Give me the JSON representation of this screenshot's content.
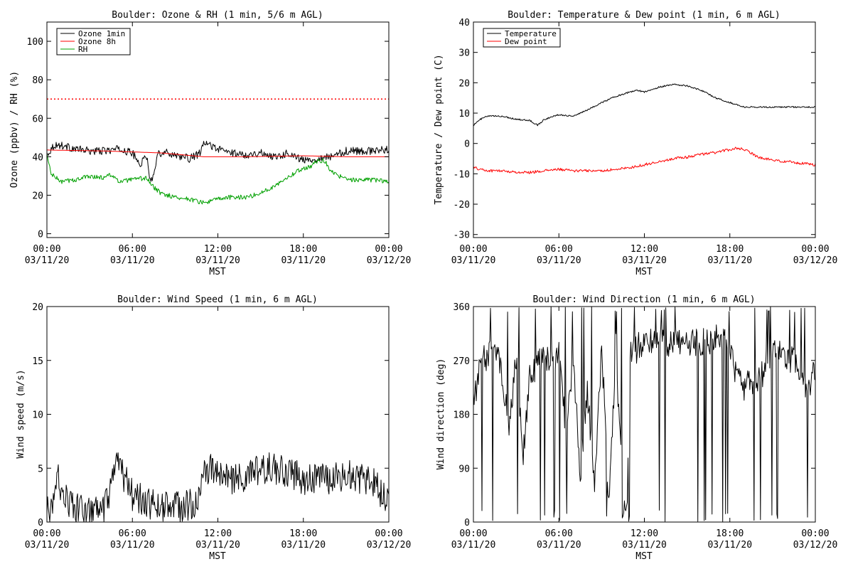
{
  "chart_data": [
    {
      "type": "line",
      "title": "Boulder: Ozone & RH (1 min, 5/6 m AGL)",
      "ylabel": "Ozone (ppbv) / RH (%)",
      "xlabel": "MST",
      "xlim": [
        0,
        24
      ],
      "ylim": [
        -2,
        110
      ],
      "yticks": [
        0,
        20,
        40,
        60,
        80,
        100
      ],
      "ytick_labels": [
        "0",
        "20",
        "40",
        "60",
        "80",
        "100"
      ],
      "xticks": [
        0,
        6,
        12,
        18,
        24
      ],
      "xtick_labels": [
        [
          "00:00",
          "03/11/20"
        ],
        [
          "06:00",
          "03/11/20"
        ],
        [
          "12:00",
          "03/11/20"
        ],
        [
          "18:00",
          "03/11/20"
        ],
        [
          "00:00",
          "03/12/20"
        ]
      ],
      "legend": "top-left",
      "hline": {
        "y": 70,
        "color": "#ff0000",
        "style": "dotted"
      },
      "series": [
        {
          "name": "Ozone 1min",
          "color": "#000000",
          "noise": 2.0,
          "x": [
            0,
            0.5,
            1,
            2,
            3,
            4,
            5,
            6,
            6.5,
            7,
            7.3,
            7.8,
            8.5,
            9,
            10,
            10.8,
            11,
            11.5,
            12,
            13,
            14,
            15,
            16,
            17,
            18,
            19,
            19.5,
            20,
            21,
            22,
            23,
            24
          ],
          "y": [
            41,
            46,
            46,
            44,
            43,
            43,
            44,
            42,
            36,
            40,
            26,
            42,
            42,
            41,
            39,
            42,
            47,
            46,
            44,
            42,
            41,
            42,
            40,
            42,
            38,
            39,
            40,
            40,
            43,
            43,
            43,
            44
          ]
        },
        {
          "name": "Ozone 8h",
          "color": "#ff0000",
          "noise": 0,
          "x": [
            0,
            4,
            8,
            11,
            14,
            18,
            21,
            24
          ],
          "y": [
            43.5,
            43,
            42,
            40,
            40,
            40.5,
            40,
            40
          ]
        },
        {
          "name": "RH",
          "color": "#00a000",
          "noise": 1.2,
          "x": [
            0,
            0.3,
            1,
            2,
            3,
            4,
            4.5,
            5,
            6,
            7,
            7.5,
            8,
            9,
            10,
            11,
            12,
            13,
            14,
            15,
            16,
            17,
            18,
            18.5,
            19,
            19.5,
            20,
            21,
            22,
            23,
            24
          ],
          "y": [
            41,
            31,
            27,
            28,
            30,
            29,
            31,
            27,
            28,
            29,
            24,
            21,
            19,
            18,
            16,
            18,
            19,
            19,
            21,
            25,
            30,
            34,
            35,
            38,
            38,
            32,
            28,
            28,
            28,
            27
          ]
        }
      ]
    },
    {
      "type": "line",
      "title": "Boulder: Temperature & Dew point (1 min, 6 m AGL)",
      "ylabel": "Temperature / Dew point (C)",
      "xlabel": "MST",
      "xlim": [
        0,
        24
      ],
      "ylim": [
        -31,
        40
      ],
      "yticks": [
        -30,
        -20,
        -10,
        0,
        10,
        20,
        30,
        40
      ],
      "ytick_labels": [
        "-30",
        "-20",
        "-10",
        "0",
        "10",
        "20",
        "30",
        "40"
      ],
      "xticks": [
        0,
        6,
        12,
        18,
        24
      ],
      "xtick_labels": [
        [
          "00:00",
          "03/11/20"
        ],
        [
          "06:00",
          "03/11/20"
        ],
        [
          "12:00",
          "03/11/20"
        ],
        [
          "18:00",
          "03/11/20"
        ],
        [
          "00:00",
          "03/12/20"
        ]
      ],
      "legend": "top-left",
      "series": [
        {
          "name": "Temperature",
          "color": "#000000",
          "noise": 0.25,
          "x": [
            0,
            0.5,
            1,
            2,
            3,
            4,
            4.5,
            5,
            6,
            7,
            8,
            9,
            10,
            11,
            11.5,
            12,
            13,
            14,
            15,
            16,
            17,
            18,
            19,
            20,
            21,
            22,
            23,
            24
          ],
          "y": [
            6,
            8,
            9,
            9,
            8,
            7.5,
            6,
            8,
            9.5,
            9,
            11,
            13.5,
            15.5,
            17,
            17.5,
            17,
            18.5,
            19.5,
            19,
            17.5,
            15,
            13.5,
            12,
            12,
            12,
            12,
            12,
            12
          ]
        },
        {
          "name": "Dew point",
          "color": "#ff0000",
          "noise": 0.45,
          "x": [
            0,
            1,
            2,
            3,
            4,
            5,
            6,
            7,
            8,
            9,
            10,
            11,
            12,
            13,
            14,
            15,
            16,
            17,
            18,
            18.5,
            19,
            20,
            21,
            22,
            23,
            24
          ],
          "y": [
            -8,
            -9,
            -9,
            -9.5,
            -9.5,
            -9,
            -8.5,
            -9,
            -9,
            -9,
            -8.5,
            -8,
            -7,
            -6,
            -5,
            -4.5,
            -3.5,
            -3,
            -2,
            -1.5,
            -2,
            -4.5,
            -5.5,
            -6,
            -6.5,
            -7
          ]
        }
      ]
    },
    {
      "type": "line",
      "title": "Boulder: Wind Speed (1 min, 6 m AGL)",
      "ylabel": "Wind speed (m/s)",
      "xlabel": "MST",
      "xlim": [
        0,
        24
      ],
      "ylim": [
        0,
        20
      ],
      "yticks": [
        0,
        5,
        10,
        15,
        20
      ],
      "ytick_labels": [
        "0",
        "5",
        "10",
        "15",
        "20"
      ],
      "xticks": [
        0,
        6,
        12,
        18,
        24
      ],
      "xtick_labels": [
        [
          "00:00",
          "03/11/20"
        ],
        [
          "06:00",
          "03/11/20"
        ],
        [
          "12:00",
          "03/11/20"
        ],
        [
          "18:00",
          "03/11/20"
        ],
        [
          "00:00",
          "03/12/20"
        ]
      ],
      "series": [
        {
          "color": "#000000",
          "noise": 1.5,
          "x": [
            0,
            0.5,
            0.8,
            1,
            1.5,
            2,
            3,
            4,
            4.5,
            5,
            5.5,
            6,
            7,
            8,
            9,
            10,
            10.8,
            11,
            11.5,
            12,
            13,
            14,
            15,
            16,
            17,
            18,
            19,
            20,
            21,
            22,
            23,
            24
          ],
          "y": [
            1,
            1.5,
            4.5,
            3,
            2,
            1.2,
            1,
            1,
            3,
            5.5,
            4,
            2.5,
            1.8,
            1.5,
            1.5,
            1.5,
            2.5,
            4.5,
            5,
            4.5,
            4,
            4,
            5,
            5,
            4.5,
            4,
            4,
            4,
            4.5,
            4,
            3.5,
            2
          ]
        }
      ]
    },
    {
      "type": "line",
      "title": "Boulder: Wind Direction (1 min, 6 m AGL)",
      "ylabel": "Wind direction (deg)",
      "xlabel": "MST",
      "xlim": [
        0,
        24
      ],
      "ylim": [
        0,
        360
      ],
      "yticks": [
        0,
        90,
        180,
        270,
        360
      ],
      "ytick_labels": [
        "0",
        "90",
        "180",
        "270",
        "360"
      ],
      "xticks": [
        0,
        6,
        12,
        18,
        24
      ],
      "xtick_labels": [
        [
          "00:00",
          "03/11/20"
        ],
        [
          "06:00",
          "03/11/20"
        ],
        [
          "12:00",
          "03/11/20"
        ],
        [
          "18:00",
          "03/11/20"
        ],
        [
          "00:00",
          "03/12/20"
        ]
      ],
      "series": [
        {
          "color": "#000000",
          "noise": 25,
          "spike_prob": 0.12,
          "x": [
            0,
            0.3,
            0.5,
            1,
            1.5,
            2,
            2.5,
            3,
            3.5,
            4,
            4.5,
            5,
            5.5,
            6,
            6.5,
            7,
            7.5,
            8,
            8.5,
            9,
            9.5,
            10,
            10.5,
            10.8,
            11,
            11.5,
            12,
            13,
            14,
            15,
            16,
            17,
            18,
            18.5,
            19,
            19.5,
            20,
            20.5,
            21,
            22,
            23,
            23.5,
            24
          ],
          "y": [
            200,
            240,
            260,
            280,
            300,
            250,
            150,
            280,
            120,
            250,
            260,
            280,
            270,
            290,
            150,
            270,
            80,
            220,
            60,
            300,
            30,
            290,
            40,
            30,
            280,
            290,
            300,
            305,
            300,
            300,
            300,
            305,
            300,
            240,
            220,
            240,
            230,
            260,
            290,
            280,
            250,
            210,
            260
          ]
        }
      ]
    }
  ]
}
